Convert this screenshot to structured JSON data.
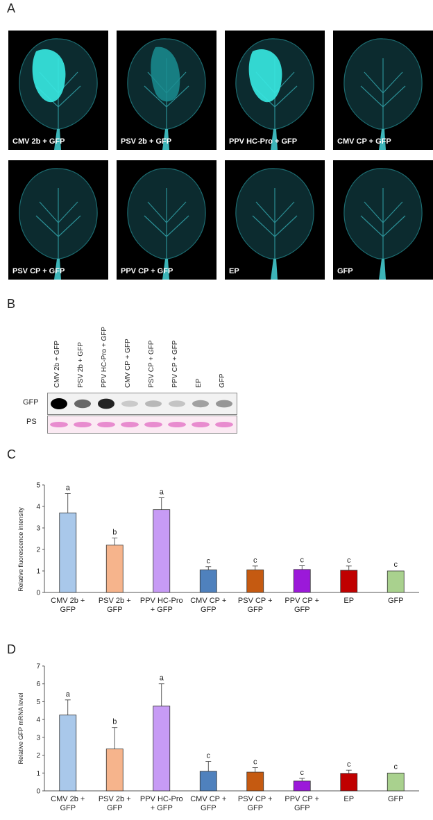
{
  "panels": {
    "a": "A",
    "b": "B",
    "c": "C",
    "d": "D"
  },
  "leaves": [
    {
      "label": "CMV 2b + GFP",
      "glow": "high"
    },
    {
      "label": "PSV 2b + GFP",
      "glow": "mid"
    },
    {
      "label": "PPV HC-Pro + GFP",
      "glow": "high"
    },
    {
      "label": "CMV CP + GFP",
      "glow": "none"
    },
    {
      "label": "PSV CP + GFP",
      "glow": "none"
    },
    {
      "label": "PPV CP + GFP",
      "glow": "none"
    },
    {
      "label": "EP",
      "glow": "none"
    },
    {
      "label": "GFP",
      "glow": "none"
    }
  ],
  "blot": {
    "lanes": [
      "CMV 2b + GFP",
      "PSV 2b + GFP",
      "PPV HC-Pro + GFP",
      "CMV CP + GFP",
      "PSV CP + GFP",
      "PPV CP + GFP",
      "EP",
      "GFP"
    ],
    "row_gfp": "GFP",
    "row_ps": "PS",
    "gfp_intensity": [
      1.0,
      0.55,
      0.85,
      0.12,
      0.2,
      0.15,
      0.3,
      0.35
    ]
  },
  "chart_data": [
    {
      "type": "bar",
      "panel": "C",
      "ylabel": "Relative fluorescence intensity",
      "ylim": [
        0,
        5
      ],
      "yticks": [
        "0",
        "1",
        "2",
        "3",
        "4",
        "5"
      ],
      "categories": [
        [
          "CMV 2b +",
          "GFP"
        ],
        [
          "PSV 2b +",
          "GFP"
        ],
        [
          "PPV HC-Pro",
          "+ GFP"
        ],
        [
          "CMV CP +",
          "GFP"
        ],
        [
          "PSV CP +",
          "GFP"
        ],
        [
          "PPV CP +",
          "GFP"
        ],
        [
          "EP",
          ""
        ],
        [
          "GFP",
          ""
        ]
      ],
      "values": [
        3.7,
        2.2,
        3.85,
        1.05,
        1.05,
        1.07,
        1.03,
        1.0
      ],
      "errors": [
        0.9,
        0.33,
        0.55,
        0.15,
        0.18,
        0.17,
        0.2,
        0.0
      ],
      "letters": [
        "a",
        "b",
        "a",
        "c",
        "c",
        "c",
        "c",
        "c"
      ],
      "colors": [
        "#a9c8ea",
        "#f6b48c",
        "#c79bf5",
        "#4f81bd",
        "#c55a11",
        "#9b19d9",
        "#c00000",
        "#a9d18e"
      ]
    },
    {
      "type": "bar",
      "panel": "D",
      "ylabel": "Relative GFP mRNA level",
      "ylim": [
        0,
        7
      ],
      "yticks": [
        "0",
        "1",
        "2",
        "3",
        "4",
        "5",
        "6",
        "7"
      ],
      "categories": [
        [
          "CMV 2b +",
          "GFP"
        ],
        [
          "PSV 2b +",
          "GFP"
        ],
        [
          "PPV HC-Pro",
          "+ GFP"
        ],
        [
          "CMV CP +",
          "GFP"
        ],
        [
          "PSV CP +",
          "GFP"
        ],
        [
          "PPV CP +",
          "GFP"
        ],
        [
          "EP",
          ""
        ],
        [
          "GFP",
          ""
        ]
      ],
      "values": [
        4.25,
        2.35,
        4.75,
        1.1,
        1.05,
        0.55,
        0.98,
        1.0
      ],
      "errors": [
        0.85,
        1.2,
        1.25,
        0.55,
        0.25,
        0.15,
        0.18,
        0.0
      ],
      "letters": [
        "a",
        "b",
        "a",
        "c",
        "c",
        "c",
        "c",
        "c"
      ],
      "colors": [
        "#a9c8ea",
        "#f6b48c",
        "#c79bf5",
        "#4f81bd",
        "#c55a11",
        "#9b19d9",
        "#c00000",
        "#a9d18e"
      ]
    }
  ]
}
